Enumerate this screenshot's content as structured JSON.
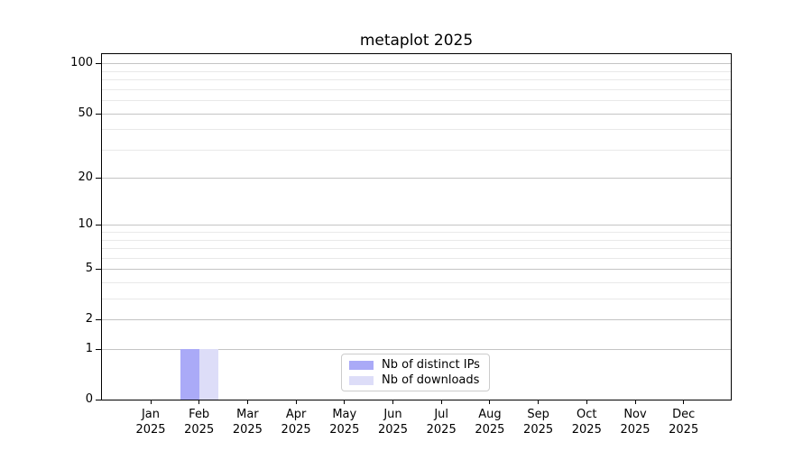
{
  "title": "metaplot 2025",
  "legend": {
    "items": [
      {
        "label": "Nb of distinct IPs",
        "color": "#aaaaf7"
      },
      {
        "label": "Nb of downloads",
        "color": "#ddddf8"
      }
    ]
  },
  "chart_data": {
    "type": "bar",
    "title": "metaplot 2025",
    "categories": [
      "Jan 2025",
      "Feb 2025",
      "Mar 2025",
      "Apr 2025",
      "May 2025",
      "Jun 2025",
      "Jul 2025",
      "Aug 2025",
      "Sep 2025",
      "Oct 2025",
      "Nov 2025",
      "Dec 2025"
    ],
    "series": [
      {
        "name": "Nb of distinct IPs",
        "color": "#aaaaf7",
        "values": [
          0,
          1,
          0,
          0,
          0,
          0,
          0,
          0,
          0,
          0,
          0,
          0
        ]
      },
      {
        "name": "Nb of downloads",
        "color": "#ddddf8",
        "values": [
          0,
          1,
          0,
          0,
          0,
          0,
          0,
          0,
          0,
          0,
          0,
          0
        ]
      }
    ],
    "xlabel": "",
    "ylabel": "",
    "yscale": "log1p",
    "ylim": [
      0,
      113
    ],
    "y_major_ticks": [
      0,
      1,
      2,
      5,
      10,
      20,
      50,
      100
    ],
    "y_minor_ticks": [
      3,
      4,
      6,
      7,
      8,
      9,
      30,
      40,
      60,
      70,
      80,
      90
    ],
    "grid": "horizontal",
    "legend_position": "lower center inside axes",
    "colors": {
      "grid_major": "#c4c4c4",
      "grid_minor": "#e9e9e9",
      "spine": "#000000",
      "legend_border": "#cccccc"
    }
  }
}
